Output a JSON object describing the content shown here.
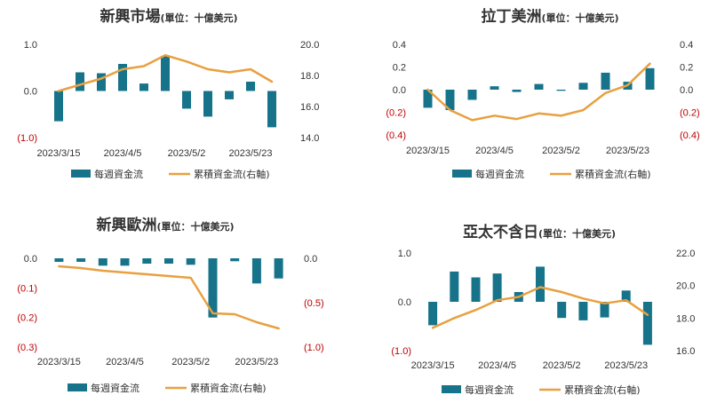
{
  "colors": {
    "bar": "#16738a",
    "line": "#e8a040",
    "negative_label": "#c00000",
    "text": "#333333"
  },
  "chart_data": [
    {
      "type": "bar+line",
      "title": "新興市場",
      "subtitle": "(單位：十億美元)",
      "x_tick_labels": [
        "2023/3/15",
        "2023/4/5",
        "2023/5/2",
        "2023/5/23"
      ],
      "y_left": {
        "range": [
          -1.0,
          1.0
        ],
        "ticks": [
          {
            "v": 1.0,
            "label": "1.0"
          },
          {
            "v": 0.0,
            "label": "0.0"
          },
          {
            "v": -1.0,
            "label": "(1.0)"
          }
        ]
      },
      "y_right": {
        "range": [
          14.0,
          20.0
        ],
        "ticks": [
          {
            "v": 20.0,
            "label": "20.0"
          },
          {
            "v": 18.0,
            "label": "18.0"
          },
          {
            "v": 16.0,
            "label": "16.0"
          },
          {
            "v": 14.0,
            "label": "14.0"
          }
        ]
      },
      "series": [
        {
          "name": "每週資金流",
          "kind": "bar",
          "axis": "left",
          "values": [
            -0.65,
            0.4,
            0.38,
            0.58,
            0.16,
            0.75,
            -0.38,
            -0.55,
            -0.18,
            0.2,
            -0.78
          ]
        },
        {
          "name": "累積資金流(右軸)",
          "kind": "line",
          "axis": "right",
          "values": [
            17.0,
            17.4,
            17.8,
            18.4,
            18.6,
            19.3,
            18.9,
            18.4,
            18.2,
            18.4,
            17.6
          ]
        }
      ]
    },
    {
      "type": "bar+line",
      "title": "拉丁美洲",
      "subtitle": "(單位：十億美元)",
      "x_tick_labels": [
        "2023/3/15",
        "2023/4/5",
        "2023/5/2",
        "2023/5/23"
      ],
      "y_left": {
        "range": [
          -0.4,
          0.4
        ],
        "ticks": [
          {
            "v": 0.4,
            "label": "0.4"
          },
          {
            "v": 0.2,
            "label": "0.2"
          },
          {
            "v": 0.0,
            "label": "0.0"
          },
          {
            "v": -0.2,
            "label": "(0.2)"
          },
          {
            "v": -0.4,
            "label": "(0.4)"
          }
        ]
      },
      "y_right": {
        "range": [
          -0.4,
          0.4
        ],
        "ticks": [
          {
            "v": 0.4,
            "label": "0.4"
          },
          {
            "v": 0.2,
            "label": "0.2"
          },
          {
            "v": 0.0,
            "label": "0.0"
          },
          {
            "v": -0.2,
            "label": "(0.2)"
          },
          {
            "v": -0.4,
            "label": "(0.4)"
          }
        ]
      },
      "series": [
        {
          "name": "每週資金流",
          "kind": "bar",
          "axis": "left",
          "values": [
            -0.16,
            -0.18,
            -0.09,
            0.03,
            -0.02,
            0.05,
            -0.01,
            0.06,
            0.15,
            0.07,
            0.19
          ]
        },
        {
          "name": "累積資金流(右軸)",
          "kind": "line",
          "axis": "right",
          "values": [
            0.0,
            -0.18,
            -0.27,
            -0.23,
            -0.26,
            -0.21,
            -0.23,
            -0.18,
            -0.03,
            0.04,
            0.23
          ]
        }
      ]
    },
    {
      "type": "bar+line",
      "title": "新興歐洲",
      "subtitle": "(單位：十億美元)",
      "x_tick_labels": [
        "2023/3/15",
        "2023/4/5",
        "2023/5/2",
        "2023/5/23"
      ],
      "y_left": {
        "range": [
          -0.3,
          0.0
        ],
        "ticks": [
          {
            "v": 0.0,
            "label": "0.0"
          },
          {
            "v": -0.1,
            "label": "(0.1)"
          },
          {
            "v": -0.2,
            "label": "(0.2)"
          },
          {
            "v": -0.3,
            "label": "(0.3)"
          }
        ]
      },
      "y_right": {
        "range": [
          -1.0,
          0.0
        ],
        "ticks": [
          {
            "v": 0.0,
            "label": "0.0"
          },
          {
            "v": -0.5,
            "label": "(0.5)"
          },
          {
            "v": -1.0,
            "label": "(1.0)"
          }
        ]
      },
      "series": [
        {
          "name": "每週資金流",
          "kind": "bar",
          "axis": "left",
          "values": [
            -0.012,
            -0.012,
            -0.025,
            -0.025,
            -0.018,
            -0.018,
            -0.022,
            -0.2,
            -0.01,
            -0.085,
            -0.068
          ]
        },
        {
          "name": "累積資金流(右軸)",
          "kind": "line",
          "axis": "right",
          "values": [
            -0.09,
            -0.11,
            -0.14,
            -0.16,
            -0.18,
            -0.2,
            -0.22,
            -0.62,
            -0.63,
            -0.72,
            -0.79
          ]
        }
      ]
    },
    {
      "type": "bar+line",
      "title": "亞太不含日",
      "subtitle": "(單位：十億美元)",
      "x_tick_labels": [
        "2023/3/15",
        "2023/4/5",
        "2023/5/2",
        "2023/5/23"
      ],
      "y_left": {
        "range": [
          -1.0,
          1.0
        ],
        "ticks": [
          {
            "v": 1.0,
            "label": "1.0"
          },
          {
            "v": 0.0,
            "label": "0.0"
          },
          {
            "v": -1.0,
            "label": "(1.0)"
          }
        ]
      },
      "y_right": {
        "range": [
          16.0,
          22.0
        ],
        "ticks": [
          {
            "v": 22.0,
            "label": "22.0"
          },
          {
            "v": 20.0,
            "label": "20.0"
          },
          {
            "v": 18.0,
            "label": "18.0"
          },
          {
            "v": 16.0,
            "label": "16.0"
          }
        ]
      },
      "series": [
        {
          "name": "每週資金流",
          "kind": "bar",
          "axis": "left",
          "values": [
            -0.48,
            0.62,
            0.5,
            0.58,
            0.2,
            0.72,
            -0.33,
            -0.38,
            -0.32,
            0.23,
            -0.88
          ]
        },
        {
          "name": "累積資金流(右軸)",
          "kind": "line",
          "axis": "right",
          "values": [
            17.4,
            18.0,
            18.5,
            19.1,
            19.3,
            19.9,
            19.6,
            19.2,
            18.9,
            19.1,
            18.2
          ]
        }
      ]
    }
  ]
}
